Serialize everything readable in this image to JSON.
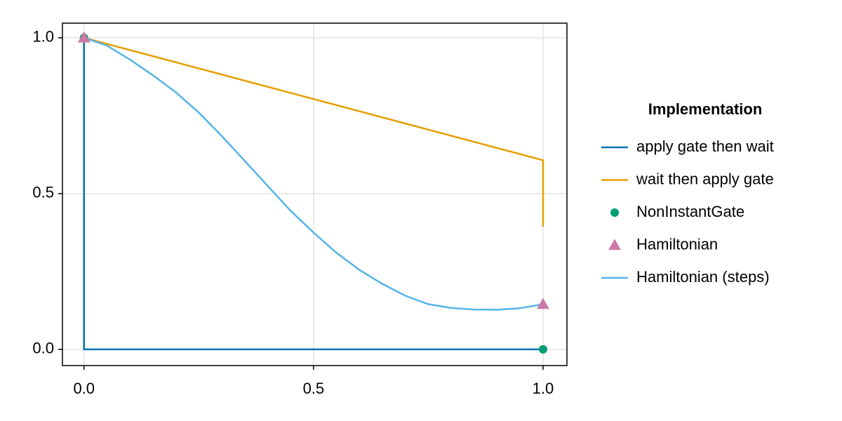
{
  "chart_data": {
    "type": "line",
    "legend_title": "Implementation",
    "legend_position": "right",
    "grid": true,
    "xlim": [
      -0.047,
      1.052
    ],
    "ylim": [
      -0.052,
      1.047
    ],
    "xticks": [
      {
        "value": 0,
        "label": "0.0"
      },
      {
        "value": 0.5,
        "label": "0.5"
      },
      {
        "value": 1,
        "label": "1.0"
      }
    ],
    "yticks": [
      {
        "value": 0,
        "label": "0.0"
      },
      {
        "value": 0.5,
        "label": "0.5"
      },
      {
        "value": 1,
        "label": "1.0"
      }
    ],
    "series": [
      {
        "name": "apply gate then wait",
        "color": "#0072b2",
        "mode": "line",
        "x": [
          0,
          0,
          1
        ],
        "values": [
          1,
          0,
          0
        ]
      },
      {
        "name": "wait then apply gate",
        "color": "#e69f00",
        "mode": "line",
        "x": [
          0,
          1,
          1
        ],
        "values": [
          1,
          0.607,
          0.394
        ]
      },
      {
        "name": "NonInstantGate",
        "color": "#009e73",
        "mode": "scatter",
        "marker": "circle",
        "x": [
          0,
          1
        ],
        "values": [
          1,
          0
        ]
      },
      {
        "name": "Hamiltonian",
        "color": "#cc79a7",
        "mode": "scatter",
        "marker": "triangle",
        "x": [
          0,
          1
        ],
        "values": [
          1,
          0.145
        ]
      },
      {
        "name": "Hamiltonian (steps)",
        "color": "#56b4e9",
        "mode": "line",
        "x": [
          0,
          0.05,
          0.1,
          0.15,
          0.2,
          0.25,
          0.3,
          0.35,
          0.4,
          0.45,
          0.5,
          0.55,
          0.6,
          0.65,
          0.7,
          0.75,
          0.8,
          0.85,
          0.9,
          0.95,
          1
        ],
        "values": [
          1,
          0.975,
          0.93,
          0.88,
          0.825,
          0.76,
          0.685,
          0.605,
          0.525,
          0.445,
          0.375,
          0.31,
          0.255,
          0.21,
          0.172,
          0.145,
          0.133,
          0.128,
          0.127,
          0.132,
          0.145
        ]
      }
    ]
  }
}
